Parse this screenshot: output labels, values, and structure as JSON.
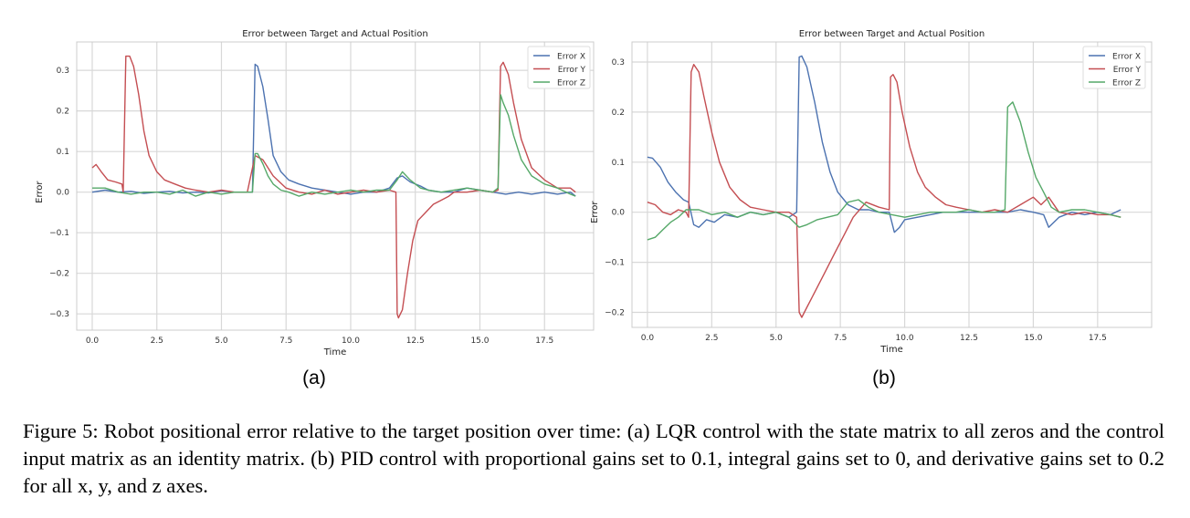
{
  "caption": "Figure 5: Robot positional error relative to the target position over time: (a) LQR control with the state matrix to all zeros and the control input matrix as an identity matrix. (b) PID control with proportional gains set to 0.1, integral gains set to 0, and derivative gains set to 0.2 for all x, y, and z axes.",
  "colors": {
    "Error X": "#4c72b0",
    "Error Y": "#c44e52",
    "Error Z": "#55a868",
    "grid": "#d8d8d8",
    "spine": "#cccccc"
  },
  "chart_data": [
    {
      "type": "line",
      "panel_label": "(a)",
      "title": "Error between Target and Actual Position",
      "xlabel": "Time",
      "ylabel": "Error",
      "xlim": [
        -0.6,
        19.4
      ],
      "ylim": [
        -0.34,
        0.37
      ],
      "xticks": [
        "0.0",
        "2.5",
        "5.0",
        "7.5",
        "10.0",
        "12.5",
        "15.0",
        "17.5"
      ],
      "xtick_values": [
        0,
        2.5,
        5,
        7.5,
        10,
        12.5,
        15,
        17.5
      ],
      "yticks": [
        "0.3",
        "0.2",
        "0.1",
        "0.0",
        "−0.1",
        "−0.2",
        "−0.3"
      ],
      "ytick_values": [
        0.3,
        0.2,
        0.1,
        0.0,
        -0.1,
        -0.2,
        -0.3
      ],
      "grid": true,
      "legend": "top-right",
      "series": [
        {
          "name": "Error X",
          "x": [
            0.0,
            0.5,
            1.0,
            1.5,
            2.0,
            2.5,
            3.0,
            3.5,
            4.0,
            4.5,
            5.0,
            5.5,
            6.0,
            6.2,
            6.3,
            6.4,
            6.6,
            6.8,
            7.0,
            7.3,
            7.6,
            8.0,
            8.5,
            9.0,
            9.5,
            10.0,
            10.5,
            11.0,
            11.5,
            11.8,
            12.0,
            12.3,
            12.7,
            13.0,
            13.5,
            14.0,
            14.5,
            15.0,
            15.5,
            16.0,
            16.5,
            17.0,
            17.5,
            18.0,
            18.5,
            18.7
          ],
          "y": [
            0.0,
            0.005,
            0.0,
            0.002,
            -0.003,
            0.0,
            0.002,
            -0.002,
            0.0,
            -0.002,
            0.003,
            0.0,
            0.0,
            0.0,
            0.315,
            0.31,
            0.26,
            0.18,
            0.09,
            0.05,
            0.03,
            0.02,
            0.01,
            0.005,
            0.0,
            -0.005,
            0.0,
            0.0,
            0.01,
            0.035,
            0.04,
            0.025,
            0.015,
            0.005,
            0.0,
            0.0,
            0.01,
            0.005,
            0.0,
            -0.005,
            0.0,
            -0.005,
            0.0,
            -0.005,
            0.0,
            -0.01
          ]
        },
        {
          "name": "Error Y",
          "x": [
            0.0,
            0.15,
            0.35,
            0.6,
            0.9,
            1.15,
            1.2,
            1.3,
            1.45,
            1.6,
            1.8,
            2.0,
            2.2,
            2.5,
            2.8,
            3.2,
            3.6,
            4.0,
            4.5,
            5.0,
            5.5,
            6.0,
            6.3,
            6.6,
            7.0,
            7.5,
            8.0,
            8.5,
            9.0,
            9.5,
            10.0,
            10.5,
            11.0,
            11.5,
            11.75,
            11.8,
            11.85,
            12.0,
            12.2,
            12.4,
            12.6,
            12.9,
            13.2,
            13.5,
            13.8,
            14.0,
            14.5,
            15.0,
            15.5,
            15.7,
            15.8,
            15.9,
            16.1,
            16.3,
            16.6,
            17.0,
            17.5,
            18.0,
            18.5,
            18.7
          ],
          "y": [
            0.06,
            0.068,
            0.05,
            0.03,
            0.025,
            0.02,
            0.0,
            0.335,
            0.335,
            0.31,
            0.24,
            0.15,
            0.09,
            0.05,
            0.03,
            0.02,
            0.01,
            0.005,
            0.0,
            0.005,
            0.0,
            0.0,
            0.09,
            0.08,
            0.04,
            0.01,
            0.0,
            -0.005,
            0.005,
            -0.005,
            0.0,
            0.005,
            0.0,
            0.005,
            0.0,
            -0.3,
            -0.31,
            -0.29,
            -0.2,
            -0.12,
            -0.07,
            -0.05,
            -0.03,
            -0.02,
            -0.01,
            0.0,
            0.0,
            0.005,
            0.0,
            0.005,
            0.31,
            0.32,
            0.29,
            0.22,
            0.13,
            0.06,
            0.03,
            0.01,
            0.01,
            0.0
          ]
        },
        {
          "name": "Error Z",
          "x": [
            0.0,
            0.5,
            1.0,
            1.5,
            2.0,
            2.5,
            3.0,
            3.5,
            4.0,
            4.5,
            5.0,
            5.5,
            6.0,
            6.2,
            6.3,
            6.4,
            6.6,
            6.8,
            7.0,
            7.3,
            7.6,
            8.0,
            8.5,
            9.0,
            9.5,
            10.0,
            10.5,
            11.0,
            11.5,
            11.8,
            12.0,
            12.3,
            12.7,
            13.0,
            13.5,
            14.0,
            14.5,
            15.0,
            15.5,
            15.7,
            15.8,
            15.9,
            16.1,
            16.3,
            16.6,
            17.0,
            17.5,
            18.0,
            18.5,
            18.7
          ],
          "y": [
            0.01,
            0.01,
            0.0,
            -0.005,
            0.0,
            0.0,
            -0.005,
            0.005,
            -0.01,
            0.0,
            -0.005,
            0.0,
            0.0,
            0.0,
            0.095,
            0.095,
            0.07,
            0.04,
            0.02,
            0.005,
            0.0,
            -0.01,
            0.0,
            -0.005,
            0.0,
            0.005,
            0.0,
            0.005,
            0.005,
            0.03,
            0.05,
            0.03,
            0.01,
            0.005,
            0.0,
            0.005,
            0.01,
            0.005,
            0.0,
            0.01,
            0.24,
            0.22,
            0.19,
            0.14,
            0.08,
            0.04,
            0.02,
            0.01,
            -0.005,
            -0.01
          ]
        }
      ]
    },
    {
      "type": "line",
      "panel_label": "(b)",
      "title": "Error between Target and Actual Position",
      "xlabel": "Time",
      "ylabel": "Error",
      "xlim": [
        -0.6,
        19.6
      ],
      "ylim": [
        -0.23,
        0.34
      ],
      "xticks": [
        "0.0",
        "2.5",
        "5.0",
        "7.5",
        "10.0",
        "12.5",
        "15.0",
        "17.5"
      ],
      "xtick_values": [
        0,
        2.5,
        5,
        7.5,
        10,
        12.5,
        15,
        17.5
      ],
      "yticks": [
        "0.3",
        "0.2",
        "0.1",
        "0.0",
        "−0.1",
        "−0.2"
      ],
      "ytick_values": [
        0.3,
        0.2,
        0.1,
        0.0,
        -0.1,
        -0.2
      ],
      "grid": true,
      "legend": "top-right",
      "series": [
        {
          "name": "Error X",
          "x": [
            0.0,
            0.2,
            0.5,
            0.8,
            1.1,
            1.4,
            1.6,
            1.8,
            2.0,
            2.3,
            2.6,
            3.0,
            3.5,
            4.0,
            4.5,
            5.0,
            5.5,
            5.8,
            5.9,
            6.0,
            6.2,
            6.5,
            6.8,
            7.1,
            7.4,
            7.8,
            8.2,
            8.6,
            9.0,
            9.4,
            9.6,
            9.8,
            10.0,
            10.5,
            11.0,
            11.5,
            12.0,
            12.5,
            13.0,
            13.5,
            14.0,
            14.5,
            15.0,
            15.4,
            15.6,
            16.0,
            16.5,
            17.0,
            17.5,
            18.0,
            18.4
          ],
          "y": [
            0.11,
            0.108,
            0.09,
            0.06,
            0.04,
            0.025,
            0.02,
            -0.025,
            -0.03,
            -0.015,
            -0.02,
            -0.005,
            -0.01,
            0.0,
            -0.005,
            0.0,
            -0.01,
            0.0,
            0.31,
            0.312,
            0.29,
            0.22,
            0.14,
            0.08,
            0.04,
            0.015,
            0.005,
            0.005,
            0.0,
            0.0,
            -0.04,
            -0.03,
            -0.015,
            -0.01,
            -0.005,
            0.0,
            0.0,
            0.0,
            0.0,
            0.0,
            0.0,
            0.005,
            0.0,
            -0.005,
            -0.03,
            -0.01,
            0.0,
            -0.005,
            0.0,
            -0.005,
            0.005
          ]
        },
        {
          "name": "Error Y",
          "x": [
            0.0,
            0.3,
            0.6,
            0.9,
            1.2,
            1.5,
            1.6,
            1.7,
            1.8,
            2.0,
            2.2,
            2.5,
            2.8,
            3.2,
            3.6,
            4.0,
            4.5,
            5.0,
            5.5,
            5.8,
            5.9,
            6.0,
            6.2,
            6.5,
            6.9,
            7.3,
            7.7,
            8.0,
            8.5,
            9.0,
            9.4,
            9.45,
            9.55,
            9.7,
            9.9,
            10.2,
            10.5,
            10.8,
            11.2,
            11.6,
            12.0,
            12.5,
            13.0,
            13.5,
            14.0,
            14.5,
            15.0,
            15.3,
            15.6,
            16.0,
            16.5,
            17.0,
            17.5,
            18.0,
            18.4
          ],
          "y": [
            0.02,
            0.015,
            0.0,
            -0.005,
            0.005,
            0.0,
            -0.01,
            0.28,
            0.295,
            0.28,
            0.23,
            0.16,
            0.1,
            0.05,
            0.025,
            0.01,
            0.005,
            0.0,
            0.0,
            -0.01,
            -0.2,
            -0.21,
            -0.19,
            -0.16,
            -0.12,
            -0.08,
            -0.04,
            -0.01,
            0.02,
            0.01,
            0.005,
            0.27,
            0.275,
            0.26,
            0.2,
            0.13,
            0.08,
            0.05,
            0.03,
            0.015,
            0.01,
            0.005,
            0.0,
            0.005,
            0.0,
            0.015,
            0.03,
            0.015,
            0.03,
            0.0,
            -0.005,
            0.0,
            -0.005,
            -0.005,
            -0.01
          ]
        },
        {
          "name": "Error Z",
          "x": [
            0.0,
            0.3,
            0.6,
            0.9,
            1.2,
            1.5,
            2.0,
            2.5,
            3.0,
            3.5,
            4.0,
            4.5,
            5.0,
            5.5,
            5.9,
            6.2,
            6.6,
            7.0,
            7.4,
            7.8,
            8.2,
            8.6,
            9.0,
            9.5,
            10.0,
            10.5,
            11.0,
            11.5,
            12.0,
            12.5,
            13.0,
            13.5,
            13.9,
            14.0,
            14.2,
            14.5,
            14.8,
            15.1,
            15.4,
            15.7,
            16.0,
            16.5,
            17.0,
            17.5,
            18.0,
            18.4
          ],
          "y": [
            -0.055,
            -0.05,
            -0.035,
            -0.02,
            -0.01,
            0.005,
            0.005,
            -0.005,
            0.0,
            -0.01,
            0.0,
            -0.005,
            0.0,
            -0.01,
            -0.03,
            -0.025,
            -0.015,
            -0.01,
            -0.005,
            0.02,
            0.025,
            0.01,
            0.0,
            -0.005,
            -0.01,
            -0.005,
            0.0,
            0.0,
            0.0,
            0.005,
            0.0,
            0.0,
            0.005,
            0.21,
            0.22,
            0.18,
            0.12,
            0.07,
            0.04,
            0.01,
            0.0,
            0.005,
            0.005,
            0.0,
            -0.005,
            -0.01
          ]
        }
      ]
    }
  ]
}
